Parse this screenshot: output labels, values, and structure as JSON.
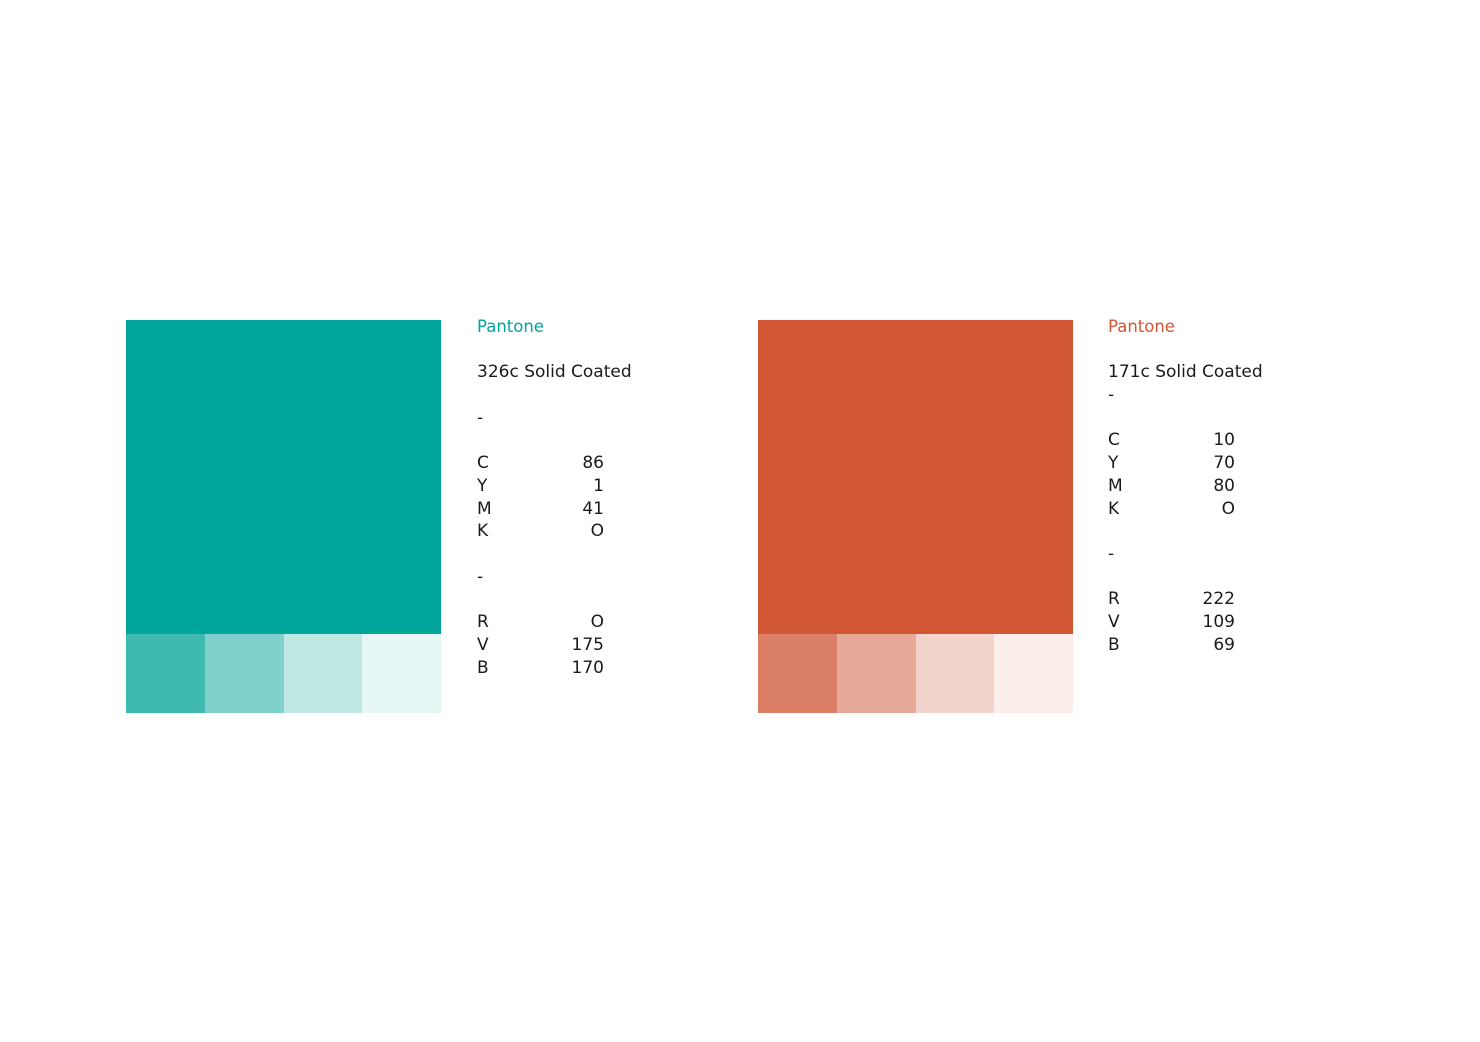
{
  "palettes": [
    {
      "main_color": "#00a59b",
      "tints": [
        "#40b9b1",
        "#80d1cc",
        "#bfe8e5",
        "#e5f6f5"
      ],
      "label": "Pantone",
      "label_color": "#00a59b",
      "pantone_name": "326c Solid Coated",
      "separator_1": "-",
      "cymk": [
        {
          "letter": "C",
          "value": "86"
        },
        {
          "letter": "Y",
          "value": "1"
        },
        {
          "letter": "M",
          "value": "41"
        },
        {
          "letter": "K",
          "value": "O"
        }
      ],
      "separator_2": "-",
      "rvb": [
        {
          "letter": "R",
          "value": "O"
        },
        {
          "letter": "V",
          "value": "175"
        },
        {
          "letter": "B",
          "value": "170"
        }
      ]
    },
    {
      "main_color": "#d05634",
      "tints": [
        "#db7f66",
        "#e7aa99",
        "#f3d4cc",
        "#f9eeea"
      ],
      "label": "Pantone",
      "label_color": "#d05634",
      "pantone_name": "171c Solid Coated",
      "separator_1": "-",
      "cymk": [
        {
          "letter": "C",
          "value": "10"
        },
        {
          "letter": "Y",
          "value": "70"
        },
        {
          "letter": "M",
          "value": "80"
        },
        {
          "letter": "K",
          "value": "O"
        }
      ],
      "separator_2": "-",
      "rvb": [
        {
          "letter": "R",
          "value": "222"
        },
        {
          "letter": "V",
          "value": "109"
        },
        {
          "letter": "B",
          "value": "69"
        }
      ]
    }
  ]
}
